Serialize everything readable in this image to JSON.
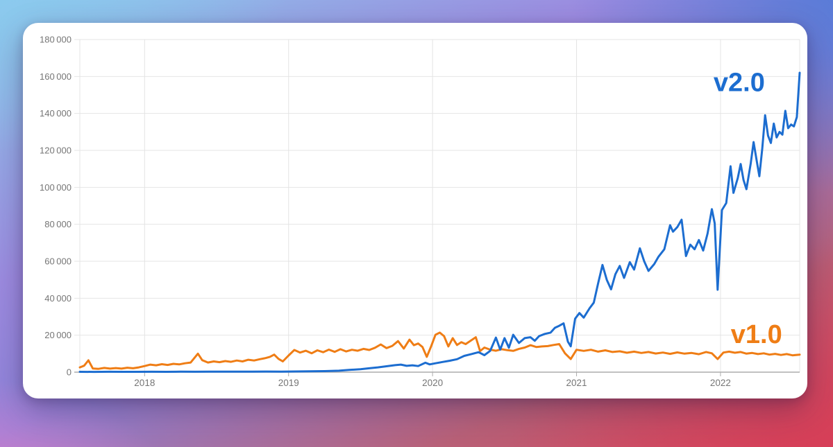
{
  "card": {
    "description": "white rounded chart panel"
  },
  "background": {
    "corner_colors": {
      "top_left": "#8CC9EC",
      "top_center": "#9C8BE0",
      "top_right": "#4878D6",
      "bottom_right": "#D63C56",
      "bottom_left": "#E27DCD"
    }
  },
  "chart_data": {
    "type": "line",
    "title": "",
    "xlabel": "",
    "ylabel": "",
    "grid": true,
    "legend_position": "inline-end-labels",
    "x_axis": {
      "range": [
        2017.55,
        2022.55
      ],
      "ticks": [
        2018,
        2019,
        2020,
        2021,
        2022
      ],
      "tick_labels": [
        "2018",
        "2019",
        "2020",
        "2021",
        "2022"
      ]
    },
    "y_axis": {
      "range": [
        0,
        180000
      ],
      "ticks": [
        0,
        20000,
        40000,
        60000,
        80000,
        100000,
        120000,
        140000,
        160000,
        180000
      ],
      "tick_labels": [
        "0",
        "20 000",
        "40 000",
        "60 000",
        "80 000",
        "100 000",
        "120 000",
        "140 000",
        "160 000",
        "180 000"
      ]
    },
    "colors": {
      "grid": "#E4E4E4",
      "axis": "#ACACAC",
      "tick_text": "#757575"
    },
    "series": [
      {
        "name": "v1.0",
        "color": "#EF7D15",
        "label_pos": {
          "x": 2022.25,
          "y": 20600
        },
        "points": [
          [
            2017.55,
            2600
          ],
          [
            2017.58,
            3500
          ],
          [
            2017.61,
            6400
          ],
          [
            2017.64,
            2000
          ],
          [
            2017.68,
            1800
          ],
          [
            2017.72,
            2300
          ],
          [
            2017.76,
            1900
          ],
          [
            2017.8,
            2200
          ],
          [
            2017.84,
            1900
          ],
          [
            2017.88,
            2400
          ],
          [
            2017.92,
            2100
          ],
          [
            2017.96,
            2600
          ],
          [
            2018.0,
            3300
          ],
          [
            2018.04,
            4100
          ],
          [
            2018.08,
            3700
          ],
          [
            2018.12,
            4300
          ],
          [
            2018.16,
            3900
          ],
          [
            2018.2,
            4500
          ],
          [
            2018.24,
            4200
          ],
          [
            2018.28,
            4800
          ],
          [
            2018.32,
            5200
          ],
          [
            2018.37,
            10000
          ],
          [
            2018.4,
            6500
          ],
          [
            2018.44,
            5200
          ],
          [
            2018.48,
            5800
          ],
          [
            2018.52,
            5400
          ],
          [
            2018.56,
            6000
          ],
          [
            2018.6,
            5600
          ],
          [
            2018.64,
            6300
          ],
          [
            2018.68,
            5800
          ],
          [
            2018.72,
            6700
          ],
          [
            2018.76,
            6300
          ],
          [
            2018.8,
            7000
          ],
          [
            2018.84,
            7600
          ],
          [
            2018.87,
            8300
          ],
          [
            2018.9,
            9500
          ],
          [
            2018.93,
            7200
          ],
          [
            2018.96,
            5800
          ],
          [
            2019.0,
            9000
          ],
          [
            2019.04,
            12000
          ],
          [
            2019.08,
            10600
          ],
          [
            2019.12,
            11600
          ],
          [
            2019.16,
            10200
          ],
          [
            2019.2,
            11800
          ],
          [
            2019.24,
            10800
          ],
          [
            2019.28,
            12200
          ],
          [
            2019.32,
            11000
          ],
          [
            2019.36,
            12400
          ],
          [
            2019.4,
            11200
          ],
          [
            2019.44,
            12100
          ],
          [
            2019.48,
            11600
          ],
          [
            2019.52,
            12600
          ],
          [
            2019.56,
            12000
          ],
          [
            2019.6,
            13200
          ],
          [
            2019.64,
            15000
          ],
          [
            2019.68,
            13000
          ],
          [
            2019.72,
            14200
          ],
          [
            2019.76,
            16800
          ],
          [
            2019.8,
            12800
          ],
          [
            2019.84,
            17600
          ],
          [
            2019.87,
            14600
          ],
          [
            2019.9,
            15500
          ],
          [
            2019.93,
            13600
          ],
          [
            2019.96,
            8300
          ],
          [
            2019.99,
            14000
          ],
          [
            2020.02,
            20200
          ],
          [
            2020.05,
            21400
          ],
          [
            2020.08,
            19500
          ],
          [
            2020.11,
            13900
          ],
          [
            2020.14,
            18400
          ],
          [
            2020.17,
            14700
          ],
          [
            2020.2,
            16200
          ],
          [
            2020.23,
            15200
          ],
          [
            2020.26,
            16800
          ],
          [
            2020.3,
            18900
          ],
          [
            2020.33,
            11400
          ],
          [
            2020.36,
            13300
          ],
          [
            2020.4,
            12200
          ],
          [
            2020.44,
            11600
          ],
          [
            2020.48,
            12400
          ],
          [
            2020.52,
            11900
          ],
          [
            2020.56,
            11500
          ],
          [
            2020.6,
            12600
          ],
          [
            2020.64,
            13300
          ],
          [
            2020.68,
            14600
          ],
          [
            2020.72,
            13600
          ],
          [
            2020.76,
            13900
          ],
          [
            2020.8,
            14100
          ],
          [
            2020.84,
            14700
          ],
          [
            2020.88,
            15200
          ],
          [
            2020.92,
            10200
          ],
          [
            2020.96,
            7100
          ],
          [
            2021.0,
            12100
          ],
          [
            2021.05,
            11500
          ],
          [
            2021.1,
            12100
          ],
          [
            2021.15,
            11100
          ],
          [
            2021.2,
            11800
          ],
          [
            2021.25,
            10900
          ],
          [
            2021.3,
            11300
          ],
          [
            2021.35,
            10500
          ],
          [
            2021.4,
            11100
          ],
          [
            2021.45,
            10400
          ],
          [
            2021.5,
            10900
          ],
          [
            2021.55,
            10100
          ],
          [
            2021.6,
            10600
          ],
          [
            2021.65,
            9900
          ],
          [
            2021.7,
            10700
          ],
          [
            2021.75,
            10000
          ],
          [
            2021.8,
            10400
          ],
          [
            2021.85,
            9700
          ],
          [
            2021.9,
            10900
          ],
          [
            2021.94,
            10200
          ],
          [
            2021.98,
            7100
          ],
          [
            2022.02,
            10600
          ],
          [
            2022.06,
            11100
          ],
          [
            2022.1,
            10500
          ],
          [
            2022.14,
            10900
          ],
          [
            2022.18,
            10000
          ],
          [
            2022.22,
            10400
          ],
          [
            2022.26,
            9800
          ],
          [
            2022.3,
            10200
          ],
          [
            2022.34,
            9500
          ],
          [
            2022.38,
            9900
          ],
          [
            2022.42,
            9300
          ],
          [
            2022.46,
            9800
          ],
          [
            2022.5,
            9100
          ],
          [
            2022.55,
            9500
          ]
        ]
      },
      {
        "name": "v2.0",
        "color": "#1C6DD0",
        "label_pos": {
          "x": 2022.13,
          "y": 157000
        },
        "points": [
          [
            2017.55,
            200
          ],
          [
            2017.65,
            150
          ],
          [
            2017.75,
            220
          ],
          [
            2017.85,
            180
          ],
          [
            2017.95,
            200
          ],
          [
            2018.05,
            230
          ],
          [
            2018.15,
            200
          ],
          [
            2018.25,
            260
          ],
          [
            2018.35,
            230
          ],
          [
            2018.45,
            250
          ],
          [
            2018.55,
            270
          ],
          [
            2018.65,
            250
          ],
          [
            2018.75,
            300
          ],
          [
            2018.85,
            320
          ],
          [
            2018.95,
            300
          ],
          [
            2019.05,
            380
          ],
          [
            2019.15,
            450
          ],
          [
            2019.25,
            550
          ],
          [
            2019.35,
            800
          ],
          [
            2019.42,
            1200
          ],
          [
            2019.5,
            1600
          ],
          [
            2019.56,
            2100
          ],
          [
            2019.62,
            2600
          ],
          [
            2019.68,
            3200
          ],
          [
            2019.74,
            3800
          ],
          [
            2019.78,
            4100
          ],
          [
            2019.82,
            3400
          ],
          [
            2019.86,
            3700
          ],
          [
            2019.9,
            3300
          ],
          [
            2019.95,
            5100
          ],
          [
            2019.98,
            4200
          ],
          [
            2020.02,
            4800
          ],
          [
            2020.07,
            5500
          ],
          [
            2020.12,
            6200
          ],
          [
            2020.17,
            7000
          ],
          [
            2020.22,
            8800
          ],
          [
            2020.27,
            9800
          ],
          [
            2020.32,
            10800
          ],
          [
            2020.36,
            9200
          ],
          [
            2020.4,
            11500
          ],
          [
            2020.44,
            18700
          ],
          [
            2020.47,
            12200
          ],
          [
            2020.5,
            18400
          ],
          [
            2020.53,
            13200
          ],
          [
            2020.56,
            20200
          ],
          [
            2020.6,
            15800
          ],
          [
            2020.64,
            18400
          ],
          [
            2020.68,
            18900
          ],
          [
            2020.71,
            17000
          ],
          [
            2020.74,
            19500
          ],
          [
            2020.78,
            20700
          ],
          [
            2020.82,
            21400
          ],
          [
            2020.85,
            24000
          ],
          [
            2020.88,
            25100
          ],
          [
            2020.91,
            26400
          ],
          [
            2020.94,
            16500
          ],
          [
            2020.96,
            14000
          ],
          [
            2020.99,
            28900
          ],
          [
            2021.02,
            32000
          ],
          [
            2021.05,
            29500
          ],
          [
            2021.09,
            34500
          ],
          [
            2021.12,
            37600
          ],
          [
            2021.15,
            48000
          ],
          [
            2021.18,
            58000
          ],
          [
            2021.21,
            50000
          ],
          [
            2021.24,
            44800
          ],
          [
            2021.27,
            53000
          ],
          [
            2021.3,
            57500
          ],
          [
            2021.33,
            51000
          ],
          [
            2021.37,
            59500
          ],
          [
            2021.4,
            55500
          ],
          [
            2021.44,
            67000
          ],
          [
            2021.47,
            60000
          ],
          [
            2021.5,
            54800
          ],
          [
            2021.54,
            58500
          ],
          [
            2021.57,
            62500
          ],
          [
            2021.61,
            66500
          ],
          [
            2021.65,
            79500
          ],
          [
            2021.67,
            76000
          ],
          [
            2021.7,
            78500
          ],
          [
            2021.73,
            82500
          ],
          [
            2021.76,
            62800
          ],
          [
            2021.79,
            69000
          ],
          [
            2021.82,
            66500
          ],
          [
            2021.85,
            71500
          ],
          [
            2021.88,
            65800
          ],
          [
            2021.91,
            75000
          ],
          [
            2021.94,
            88200
          ],
          [
            2021.96,
            80500
          ],
          [
            2021.98,
            44600
          ],
          [
            2022.01,
            87700
          ],
          [
            2022.04,
            91500
          ],
          [
            2022.07,
            111400
          ],
          [
            2022.09,
            97000
          ],
          [
            2022.12,
            105000
          ],
          [
            2022.14,
            112600
          ],
          [
            2022.16,
            104000
          ],
          [
            2022.18,
            99000
          ],
          [
            2022.21,
            113000
          ],
          [
            2022.23,
            124500
          ],
          [
            2022.25,
            115000
          ],
          [
            2022.27,
            106000
          ],
          [
            2022.29,
            121000
          ],
          [
            2022.31,
            139000
          ],
          [
            2022.33,
            128000
          ],
          [
            2022.35,
            124000
          ],
          [
            2022.37,
            134500
          ],
          [
            2022.39,
            127000
          ],
          [
            2022.41,
            130000
          ],
          [
            2022.43,
            128500
          ],
          [
            2022.45,
            141400
          ],
          [
            2022.47,
            132000
          ],
          [
            2022.49,
            134000
          ],
          [
            2022.51,
            133000
          ],
          [
            2022.53,
            138000
          ],
          [
            2022.55,
            162000
          ]
        ]
      }
    ]
  }
}
